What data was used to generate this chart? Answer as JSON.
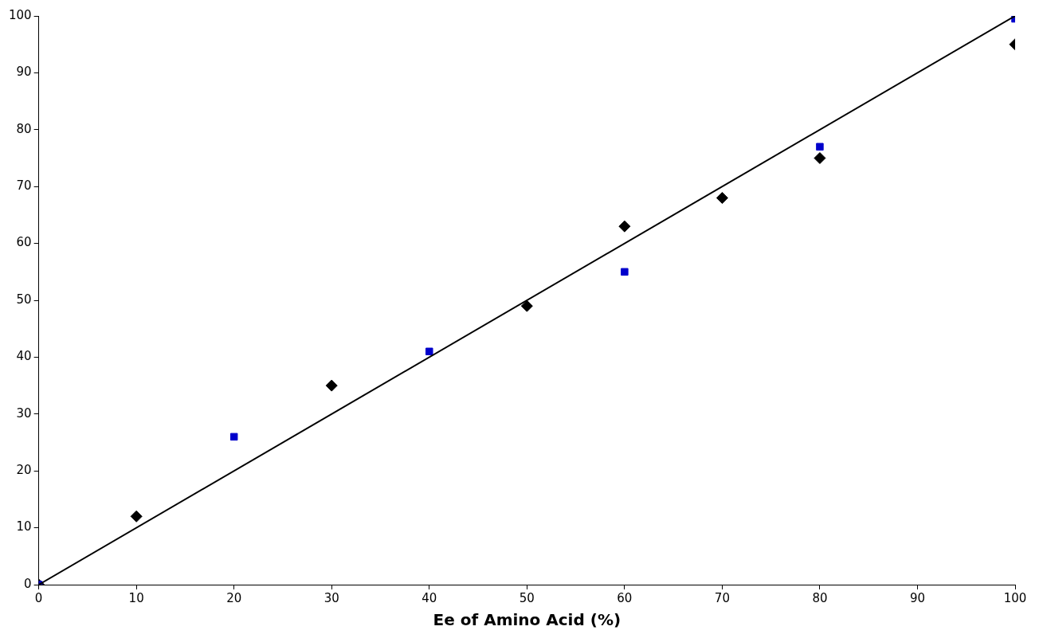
{
  "chart_data": {
    "type": "scatter",
    "xlabel": "Ee of Amino Acid (%)",
    "xlim": [
      0,
      100
    ],
    "ylim": [
      0,
      100
    ],
    "xticks": [
      0,
      10,
      20,
      30,
      40,
      50,
      60,
      70,
      80,
      90,
      100
    ],
    "yticks": [
      0,
      10,
      20,
      30,
      40,
      50,
      60,
      70,
      80,
      90,
      100
    ],
    "grid": false,
    "legend": false,
    "series": [
      {
        "marker": "diamond",
        "color": "#000000",
        "x": [
          0,
          10,
          30,
          50,
          60,
          70,
          80,
          100
        ],
        "values": [
          0,
          12,
          35,
          49,
          63,
          68,
          75,
          95
        ]
      },
      {
        "marker": "square",
        "color": "#0000cc",
        "x": [
          0,
          20,
          40,
          60,
          80,
          100
        ],
        "values": [
          0,
          26,
          41,
          55,
          77,
          99.5
        ]
      },
      {
        "type": "line",
        "marker": "none",
        "color": "#000000",
        "x": [
          0,
          100
        ],
        "values": [
          0,
          100
        ]
      }
    ]
  }
}
